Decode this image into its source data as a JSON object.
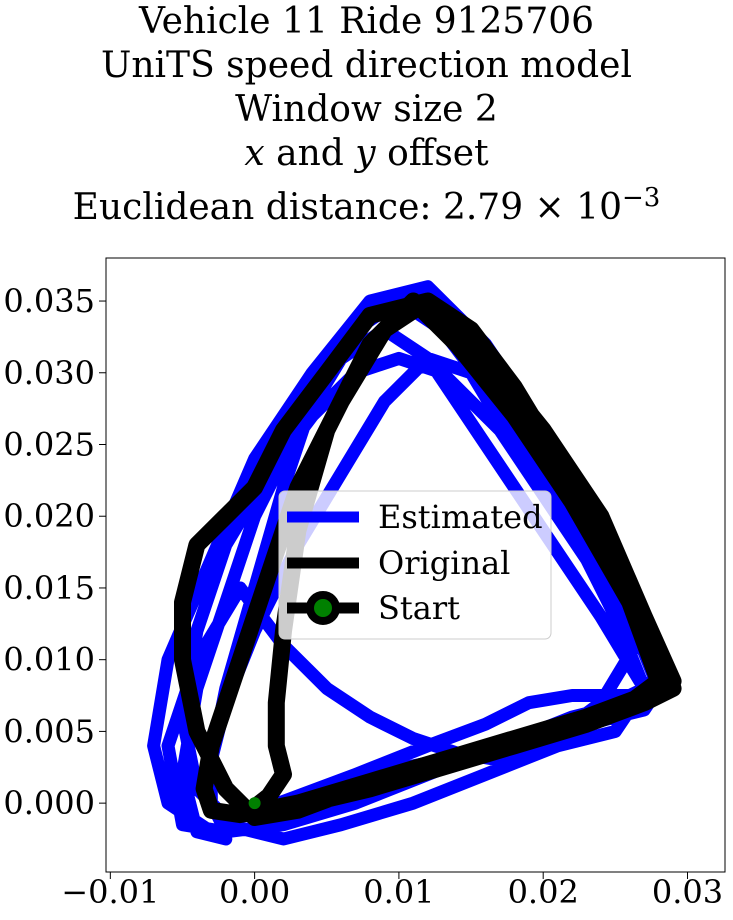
{
  "chart_data": {
    "type": "line",
    "title_lines": {
      "line1": "Vehicle 11 Ride 9125706",
      "line2": "UniTS speed direction model",
      "line3": "Window size 2",
      "line4_x": "x",
      "line4_and": " and ",
      "line4_y": "y",
      "line4_rest": " offset",
      "line5_prefix": "Euclidean distance: 2.79 × 10",
      "line5_exp": "−3"
    },
    "xlim": [
      -0.0103,
      0.0326
    ],
    "ylim": [
      -0.0048,
      0.038
    ],
    "xticks": [
      -0.01,
      0.0,
      0.01,
      0.02,
      0.03
    ],
    "xtick_labels": [
      "−0.01",
      "0.00",
      "0.01",
      "0.02",
      "0.03"
    ],
    "yticks": [
      0.0,
      0.005,
      0.01,
      0.015,
      0.02,
      0.025,
      0.03,
      0.035
    ],
    "ytick_labels": [
      "0.000",
      "0.005",
      "0.010",
      "0.015",
      "0.020",
      "0.025",
      "0.030",
      "0.035"
    ],
    "grid": false,
    "legend": {
      "placement": "center",
      "entries": [
        "Estimated",
        "Original",
        "Start"
      ]
    },
    "colors": {
      "estimated": "#0000ff",
      "original": "#000000",
      "start_marker": "#008000"
    },
    "series": [
      {
        "name": "Estimated",
        "x": [
          0.0,
          0.002,
          0.006,
          0.011,
          0.016,
          0.021,
          0.025,
          0.027,
          0.024,
          0.02,
          0.016,
          0.012,
          0.009,
          0.006,
          0.003,
          0.0,
          -0.002,
          -0.004,
          -0.005,
          -0.004,
          -0.002,
          -0.003,
          -0.006,
          -0.007,
          -0.006,
          -0.003,
          0.0,
          0.004,
          0.008,
          0.012,
          0.016,
          0.02,
          0.024,
          0.027,
          0.024,
          0.02,
          0.017,
          0.014,
          0.011,
          0.008,
          0.005,
          0.002,
          -0.001,
          -0.004,
          -0.006,
          -0.005,
          -0.002,
          0.002,
          0.007,
          0.012,
          0.017,
          0.022,
          0.026,
          0.028,
          0.025,
          0.021,
          0.017,
          0.013,
          0.01,
          0.007,
          0.004,
          0.001,
          -0.002,
          -0.004,
          -0.005,
          -0.004,
          -0.002,
          0.003,
          0.008,
          0.013,
          0.018,
          0.023,
          0.027,
          0.028,
          0.026,
          0.022,
          0.018,
          0.015,
          0.012,
          0.009,
          0.006,
          0.003,
          0.0,
          -0.002,
          -0.003,
          -0.003,
          -0.002,
          -0.001,
          0.003,
          0.007,
          0.012,
          0.016,
          0.019,
          0.022,
          0.024,
          0.026,
          0.027,
          0.025,
          0.022,
          0.019,
          0.016,
          0.013,
          0.01,
          0.007,
          0.004,
          0.002,
          0.0,
          -0.002,
          -0.003,
          -0.003,
          -0.002,
          0.0
        ],
        "y": [
          -0.002,
          -0.0025,
          -0.0015,
          0.0,
          0.002,
          0.004,
          0.005,
          0.008,
          0.013,
          0.019,
          0.025,
          0.031,
          0.033,
          0.031,
          0.026,
          0.02,
          0.014,
          0.008,
          0.002,
          -0.002,
          -0.0025,
          -0.002,
          0.0,
          0.004,
          0.01,
          0.017,
          0.024,
          0.03,
          0.035,
          0.036,
          0.032,
          0.026,
          0.019,
          0.012,
          0.007,
          0.004,
          0.003,
          0.0035,
          0.0045,
          0.006,
          0.008,
          0.011,
          0.015,
          0.01,
          0.004,
          -0.0015,
          -0.002,
          -0.0015,
          0.0,
          0.002,
          0.004,
          0.006,
          0.007,
          0.009,
          0.014,
          0.02,
          0.026,
          0.03,
          0.031,
          0.03,
          0.027,
          0.023,
          0.018,
          0.012,
          0.006,
          0.001,
          -0.001,
          0.0,
          0.002,
          0.003,
          0.0045,
          0.0055,
          0.0065,
          0.008,
          0.013,
          0.019,
          0.025,
          0.03,
          0.031,
          0.028,
          0.023,
          0.018,
          0.012,
          0.007,
          0.003,
          0.0,
          -0.002,
          -0.001,
          0.0005,
          0.002,
          0.004,
          0.0055,
          0.007,
          0.0075,
          0.0075,
          0.0075,
          0.008,
          0.013,
          0.019,
          0.025,
          0.029,
          0.033,
          0.035,
          0.033,
          0.028,
          0.022,
          0.015,
          0.008,
          0.003,
          0.0,
          -0.0015,
          -0.002
        ]
      },
      {
        "name": "Original",
        "x": [
          0.0,
          0.003,
          0.008,
          0.013,
          0.018,
          0.023,
          0.027,
          0.029,
          0.027,
          0.024,
          0.021,
          0.018,
          0.015,
          0.012,
          0.009,
          0.006,
          0.003,
          0.001,
          -0.001,
          -0.003,
          -0.0035,
          -0.003,
          -0.001,
          0.003,
          0.008,
          0.013,
          0.018,
          0.023,
          0.027,
          0.029,
          0.027,
          0.024,
          0.02,
          0.016,
          0.012,
          0.008,
          0.005,
          0.002,
          0.0,
          -0.002,
          -0.004,
          -0.005,
          -0.005,
          -0.004,
          -0.002,
          0.0,
          0.003,
          0.007,
          0.012,
          0.017,
          0.022,
          0.026,
          0.028,
          0.026,
          0.022,
          0.018,
          0.014,
          0.011,
          0.008,
          0.005,
          0.003,
          0.002,
          0.0015,
          0.0015,
          0.002,
          0.001,
          0.0
        ],
        "y": [
          -0.0003,
          -0.0002,
          0.001,
          0.0025,
          0.004,
          0.0055,
          0.007,
          0.008,
          0.012,
          0.018,
          0.024,
          0.029,
          0.033,
          0.035,
          0.033,
          0.028,
          0.022,
          0.016,
          0.01,
          0.004,
          0.001,
          -0.0005,
          -0.0008,
          0.0,
          0.0015,
          0.003,
          0.0045,
          0.006,
          0.0075,
          0.0085,
          0.013,
          0.02,
          0.026,
          0.031,
          0.035,
          0.034,
          0.03,
          0.026,
          0.022,
          0.02,
          0.018,
          0.014,
          0.01,
          0.005,
          0.001,
          -0.001,
          -0.0005,
          0.001,
          0.0025,
          0.004,
          0.0055,
          0.007,
          0.0085,
          0.014,
          0.021,
          0.027,
          0.032,
          0.035,
          0.032,
          0.026,
          0.019,
          0.012,
          0.007,
          0.004,
          0.002,
          0.0005,
          -0.0003
        ]
      }
    ],
    "start_point": {
      "x": 0.0,
      "y": 0.0
    }
  }
}
